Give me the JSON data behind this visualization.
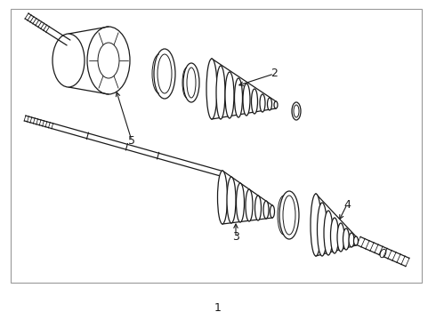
{
  "bg_color": "#ffffff",
  "line_color": "#1a1a1a",
  "border_color": "#999999",
  "fig_width": 4.9,
  "fig_height": 3.6,
  "dpi": 100
}
